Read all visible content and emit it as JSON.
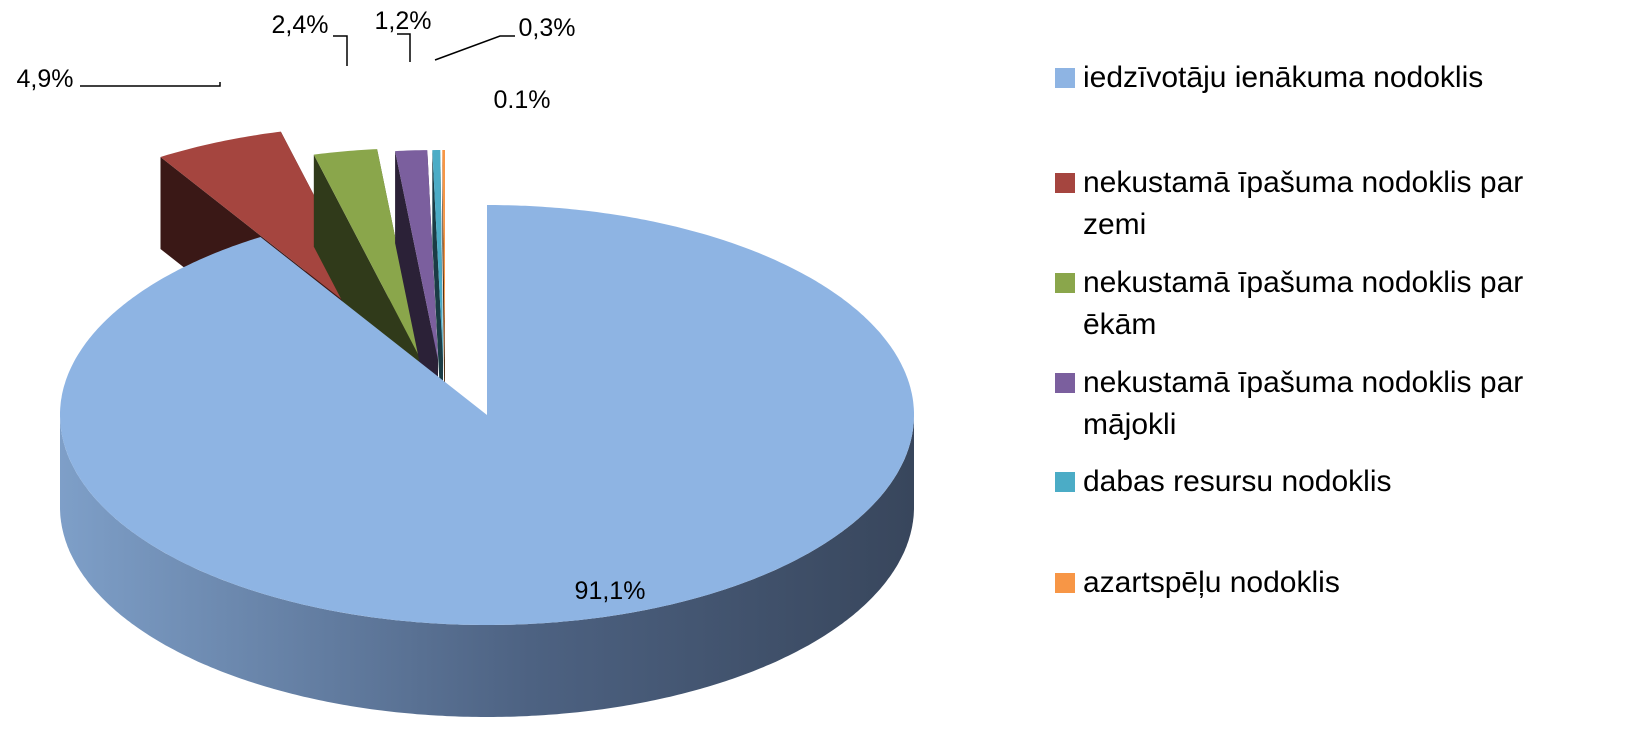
{
  "chart_data": {
    "type": "pie",
    "categories": [
      "iedzīvotāju ienākuma nodoklis",
      "nekustamā īpašuma nodoklis par zemi",
      "nekustamā īpašuma nodoklis par ēkām",
      "nekustamā īpašuma nodoklis par mājokli",
      "dabas resursu nodoklis",
      "azartspēļu nodoklis"
    ],
    "values": [
      91.1,
      4.9,
      2.4,
      1.2,
      0.3,
      0.1
    ],
    "value_labels": [
      "91,1%",
      "4,9%",
      "2,4%",
      "1,2%",
      "0,3%",
      "0.1%"
    ],
    "colors": [
      "#8eb4e3",
      "#a5453f",
      "#8aa64b",
      "#7b5f9e",
      "#4bacc6",
      "#f79646"
    ],
    "legend": "right"
  }
}
